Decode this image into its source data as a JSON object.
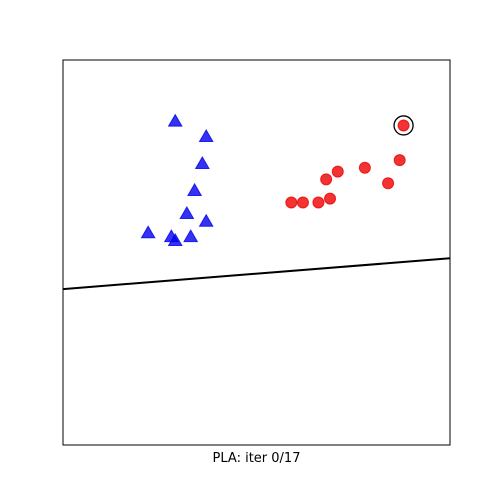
{
  "chart_data": {
    "type": "scatter",
    "title": "",
    "xlabel": "PLA: iter 0/17",
    "ylabel": "",
    "xlim": [
      0,
      1
    ],
    "ylim": [
      0,
      1
    ],
    "grid": false,
    "ticks": false,
    "series": [
      {
        "marker": "triangle",
        "color": "#0000ee",
        "points": [
          [
            0.29,
            0.84
          ],
          [
            0.37,
            0.8
          ],
          [
            0.36,
            0.73
          ],
          [
            0.34,
            0.66
          ],
          [
            0.32,
            0.6
          ],
          [
            0.37,
            0.58
          ],
          [
            0.22,
            0.55
          ],
          [
            0.28,
            0.54
          ],
          [
            0.33,
            0.54
          ],
          [
            0.29,
            0.53
          ]
        ]
      },
      {
        "marker": "circle",
        "color": "#ee0000",
        "points": [
          [
            0.88,
            0.83
          ],
          [
            0.87,
            0.74
          ],
          [
            0.78,
            0.72
          ],
          [
            0.71,
            0.71
          ],
          [
            0.68,
            0.69
          ],
          [
            0.84,
            0.68
          ],
          [
            0.59,
            0.63
          ],
          [
            0.62,
            0.63
          ],
          [
            0.66,
            0.63
          ],
          [
            0.69,
            0.64
          ]
        ]
      }
    ],
    "highlighted_point": [
      0.88,
      0.83
    ],
    "decision_line": [
      [
        0,
        0.405
      ],
      [
        1,
        0.485
      ]
    ]
  }
}
